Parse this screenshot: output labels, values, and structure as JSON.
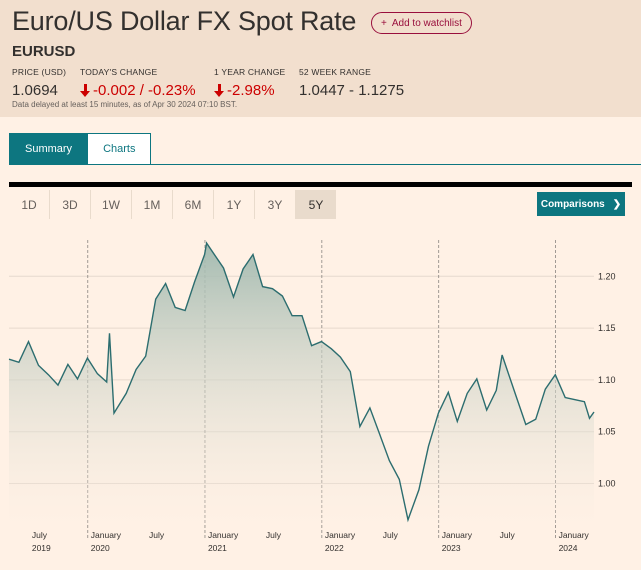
{
  "header": {
    "title": "Euro/US Dollar FX Spot Rate",
    "watchlist_label": "Add to watchlist",
    "watchlist_icon": "plus-icon",
    "symbol": "EURUSD",
    "stats": {
      "price_label": "PRICE (USD)",
      "price_value": "1.0694",
      "change_label": "TODAY'S CHANGE",
      "change_value": "-0.002 / -0.23%",
      "year_label": "1 YEAR CHANGE",
      "year_value": "-2.98%",
      "range_label": "52 WEEK RANGE",
      "range_value": "1.0447 - 1.1275"
    },
    "disclaimer": "Data delayed at least 15 minutes, as of Apr 30 2024 07:10 BST.",
    "negative_color": "#cc0000"
  },
  "tabs": [
    {
      "label": "Summary",
      "active": true
    },
    {
      "label": "Charts",
      "active": false
    }
  ],
  "ranges": [
    {
      "label": "1D",
      "active": false
    },
    {
      "label": "3D",
      "active": false
    },
    {
      "label": "1W",
      "active": false
    },
    {
      "label": "1M",
      "active": false
    },
    {
      "label": "6M",
      "active": false
    },
    {
      "label": "1Y",
      "active": false
    },
    {
      "label": "3Y",
      "active": false
    },
    {
      "label": "5Y",
      "active": true
    }
  ],
  "comparisons": {
    "label": "Comparisons",
    "icon": "chevron-right-icon"
  },
  "chart_data": {
    "type": "area",
    "ylim": [
      0.96,
      1.235
    ],
    "y_ticks": [
      "1.20",
      "1.15",
      "1.10",
      "1.05",
      "1.00"
    ],
    "x_range": [
      "2019-04-30",
      "2024-04-30"
    ],
    "x_ticks": [
      {
        "label": "July",
        "date": "2019-07-01"
      },
      {
        "label": "January",
        "date": "2020-01-01"
      },
      {
        "label": "July",
        "date": "2020-07-01"
      },
      {
        "label": "January",
        "date": "2021-01-01"
      },
      {
        "label": "July",
        "date": "2021-07-01"
      },
      {
        "label": "January",
        "date": "2022-01-01"
      },
      {
        "label": "July",
        "date": "2022-07-01"
      },
      {
        "label": "January",
        "date": "2023-01-01"
      },
      {
        "label": "July",
        "date": "2023-07-01"
      },
      {
        "label": "January",
        "date": "2024-01-01"
      }
    ],
    "year_ticks": [
      {
        "label": "2019",
        "date": "2019-07-01"
      },
      {
        "label": "2020",
        "date": "2020-01-01"
      },
      {
        "label": "2021",
        "date": "2021-01-01"
      },
      {
        "label": "2022",
        "date": "2022-01-01"
      },
      {
        "label": "2023",
        "date": "2023-01-01"
      },
      {
        "label": "2024",
        "date": "2024-01-01"
      }
    ],
    "year_dividers": [
      "2020-01-01",
      "2021-01-01",
      "2022-01-01",
      "2023-01-01",
      "2024-01-01"
    ],
    "line_color": "#2c6d6f",
    "grid": true,
    "series": [
      {
        "x": [
          "2019-04-30",
          "2019-05-31",
          "2019-06-30",
          "2019-07-31",
          "2019-08-31",
          "2019-09-30",
          "2019-10-31",
          "2019-11-30",
          "2019-12-31",
          "2020-01-31",
          "2020-02-29",
          "2020-03-09",
          "2020-03-23",
          "2020-04-30",
          "2020-05-31",
          "2020-06-30",
          "2020-07-31",
          "2020-08-31",
          "2020-09-30",
          "2020-10-31",
          "2020-11-30",
          "2020-12-31",
          "2021-01-06",
          "2021-02-28",
          "2021-03-31",
          "2021-04-30",
          "2021-05-31",
          "2021-06-30",
          "2021-07-31",
          "2021-08-31",
          "2021-09-30",
          "2021-10-31",
          "2021-11-30",
          "2021-12-31",
          "2022-01-31",
          "2022-02-28",
          "2022-03-31",
          "2022-04-30",
          "2022-05-31",
          "2022-06-30",
          "2022-07-31",
          "2022-08-31",
          "2022-09-27",
          "2022-10-31",
          "2022-11-30",
          "2022-12-31",
          "2023-01-31",
          "2023-02-28",
          "2023-03-31",
          "2023-04-30",
          "2023-05-31",
          "2023-06-30",
          "2023-07-18",
          "2023-08-31",
          "2023-09-30",
          "2023-10-31",
          "2023-11-30",
          "2023-12-31",
          "2024-01-31",
          "2024-02-29",
          "2024-03-31",
          "2024-04-16",
          "2024-04-30"
        ],
        "y": [
          1.12,
          1.117,
          1.137,
          1.114,
          1.105,
          1.095,
          1.115,
          1.101,
          1.121,
          1.106,
          1.098,
          1.145,
          1.068,
          1.087,
          1.11,
          1.123,
          1.178,
          1.193,
          1.17,
          1.167,
          1.195,
          1.221,
          1.232,
          1.208,
          1.18,
          1.207,
          1.221,
          1.19,
          1.188,
          1.181,
          1.162,
          1.162,
          1.133,
          1.137,
          1.13,
          1.122,
          1.108,
          1.055,
          1.073,
          1.048,
          1.022,
          1.004,
          0.965,
          0.994,
          1.036,
          1.068,
          1.088,
          1.06,
          1.087,
          1.101,
          1.071,
          1.09,
          1.124,
          1.084,
          1.057,
          1.062,
          1.091,
          1.105,
          1.083,
          1.081,
          1.079,
          1.063,
          1.069
        ]
      }
    ]
  }
}
